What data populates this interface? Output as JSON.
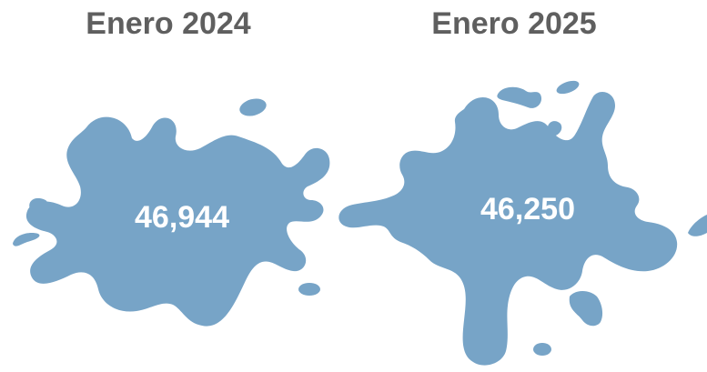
{
  "colors": {
    "splash": "#77a4c7",
    "title_text": "#5f5f5f",
    "value_text": "#ffffff",
    "background": "#ffffff"
  },
  "panels": [
    {
      "title": "Enero 2024",
      "value": "46,944"
    },
    {
      "title": "Enero 2025",
      "value": "46,250"
    }
  ]
}
